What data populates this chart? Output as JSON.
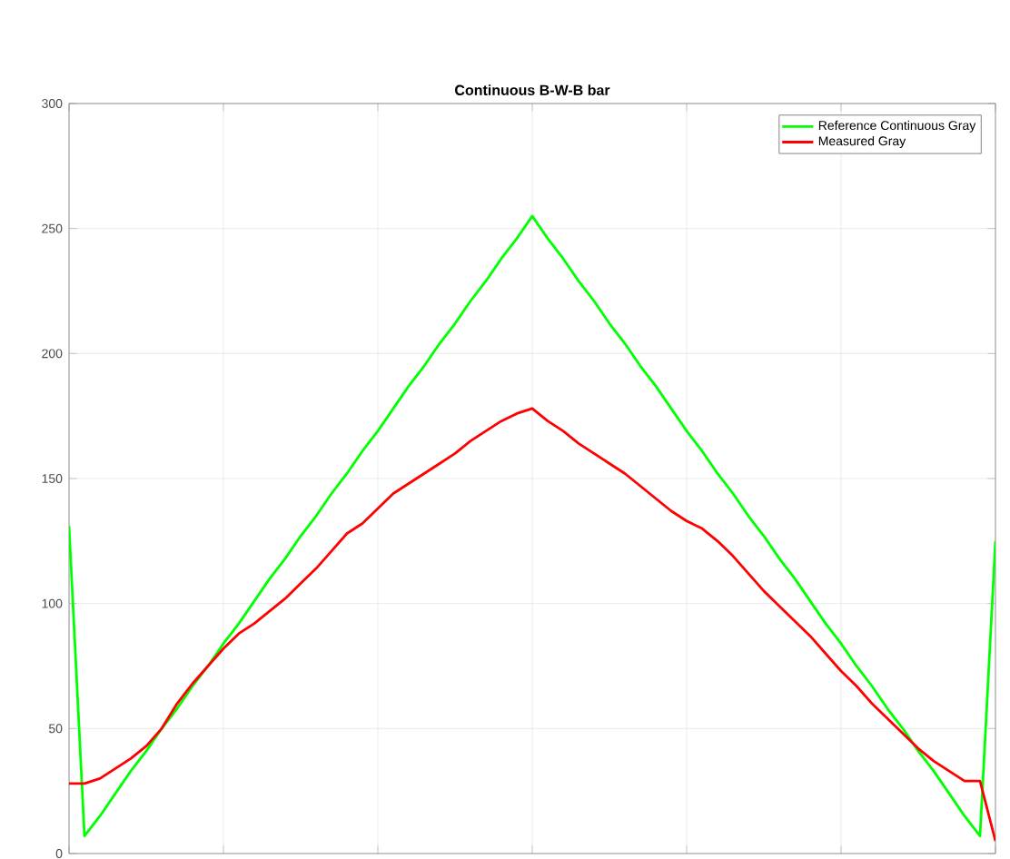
{
  "chart_data": {
    "type": "line",
    "title": "Continuous B-W-B bar",
    "categories": [
      null,
      null,
      null,
      null,
      null,
      null,
      null,
      null,
      null,
      null,
      null,
      null,
      null,
      null,
      null,
      null,
      null,
      null,
      null,
      null,
      null,
      null,
      null,
      null,
      null,
      null,
      null,
      null,
      null,
      null,
      null,
      null,
      null,
      null,
      null,
      null,
      null,
      null,
      null,
      null,
      null,
      null,
      null,
      null,
      null,
      null,
      null,
      null,
      null,
      null,
      null,
      null,
      null,
      null,
      null,
      null,
      null,
      null,
      null,
      null,
      null
    ],
    "ylim": [
      0,
      300
    ],
    "yticks": [
      0,
      50,
      100,
      150,
      200,
      250,
      300
    ],
    "grid": true,
    "legend": "top right",
    "marker": "none",
    "line_style": "solid",
    "series": [
      {
        "name": "Reference Continuous Gray",
        "color": "#00ff00",
        "values": [
          131,
          7,
          15,
          24,
          33,
          41,
          50,
          58,
          67,
          75,
          84,
          92,
          101,
          110,
          118,
          127,
          135,
          144,
          152,
          161,
          169,
          178,
          187,
          195,
          204,
          212,
          221,
          229,
          238,
          246,
          255,
          246,
          238,
          229,
          221,
          212,
          204,
          195,
          187,
          178,
          169,
          161,
          152,
          144,
          135,
          127,
          118,
          110,
          101,
          92,
          84,
          75,
          67,
          58,
          50,
          41,
          33,
          24,
          15,
          7,
          125
        ]
      },
      {
        "name": "Measured Gray",
        "color": "#ff0000",
        "values": [
          28,
          28,
          30,
          34,
          38,
          43,
          50,
          60,
          68,
          75,
          82,
          88,
          92,
          97,
          102,
          108,
          114,
          121,
          128,
          132,
          138,
          144,
          148,
          152,
          156,
          160,
          165,
          169,
          173,
          176,
          178,
          173,
          169,
          164,
          160,
          156,
          152,
          147,
          142,
          137,
          133,
          130,
          125,
          119,
          112,
          105,
          99,
          93,
          87,
          80,
          73,
          67,
          60,
          54,
          48,
          42,
          37,
          33,
          29,
          29,
          5
        ]
      }
    ]
  }
}
